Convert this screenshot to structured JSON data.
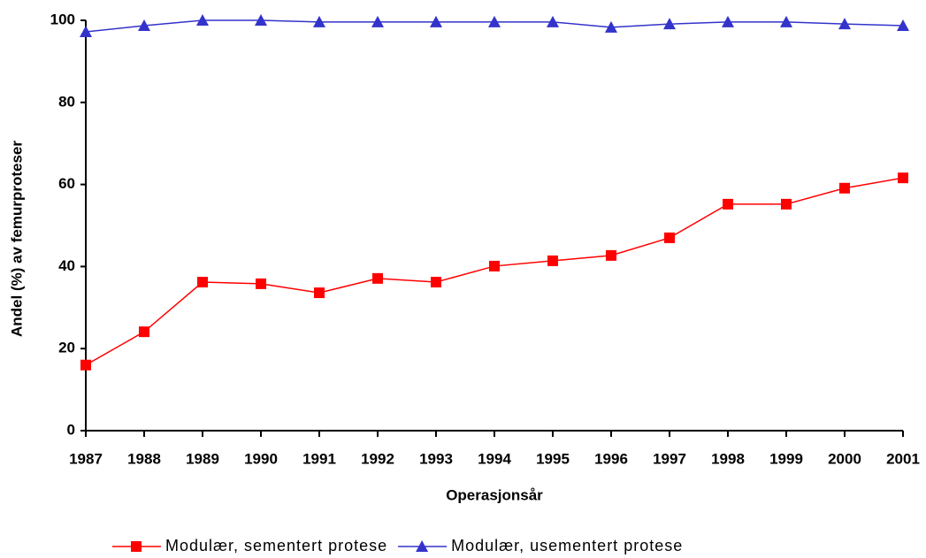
{
  "chart_data": {
    "type": "line",
    "x_label": "Operasjonsår",
    "y_label": "Andel (%) av femurproteser",
    "x": [
      1987,
      1988,
      1989,
      1990,
      1991,
      1992,
      1993,
      1994,
      1995,
      1996,
      1997,
      1998,
      1999,
      2000,
      2001
    ],
    "xlim": [
      1987,
      2001
    ],
    "xticks": [
      1987,
      1988,
      1989,
      1990,
      1991,
      1992,
      1993,
      1994,
      1995,
      1996,
      1997,
      1998,
      1999,
      2000,
      2001
    ],
    "ylim": [
      0,
      100
    ],
    "yticks": [
      0,
      20,
      40,
      60,
      80,
      100
    ],
    "grid": false,
    "legend": "bottom",
    "series": [
      {
        "name": "Modulær, sementert protese",
        "color": "#ff0000",
        "marker": "square",
        "values": [
          16,
          24.1,
          36.2,
          35.8,
          33.6,
          37.1,
          36.2,
          40.1,
          41.4,
          42.7,
          47,
          55.2,
          55.2,
          59.1,
          61.6
        ]
      },
      {
        "name": "Modulær, usementert protese",
        "color": "#3333cc",
        "marker": "triangle",
        "values": [
          97.2,
          98.7,
          100,
          100,
          99.6,
          99.6,
          99.6,
          99.6,
          99.6,
          98.3,
          99.1,
          99.6,
          99.6,
          99.1,
          98.7
        ]
      }
    ]
  }
}
